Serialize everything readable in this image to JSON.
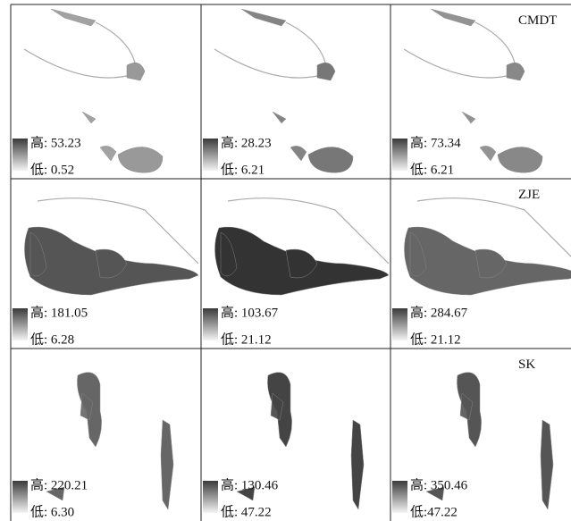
{
  "rows": [
    {
      "label": "CMDT",
      "panels": [
        {
          "high": "高: 53.23",
          "low": "低: 0.52"
        },
        {
          "high": "高: 28.23",
          "low": "低: 6.21"
        },
        {
          "high": "高: 73.34",
          "low": "低: 6.21"
        }
      ]
    },
    {
      "label": "ZJE",
      "panels": [
        {
          "high": "高: 181.05",
          "low": "低: 6.28"
        },
        {
          "high": "高: 103.67",
          "low": "低: 21.12"
        },
        {
          "high": "高: 284.67",
          "low": "低: 21.12"
        }
      ]
    },
    {
      "label": "SK",
      "panels": [
        {
          "high": "高: 220.21",
          "low": "低: 6.30"
        },
        {
          "high": "高: 130.46",
          "low": "低: 47.22"
        },
        {
          "high": "高: 350.46",
          "low": "低:47.22"
        }
      ]
    }
  ]
}
